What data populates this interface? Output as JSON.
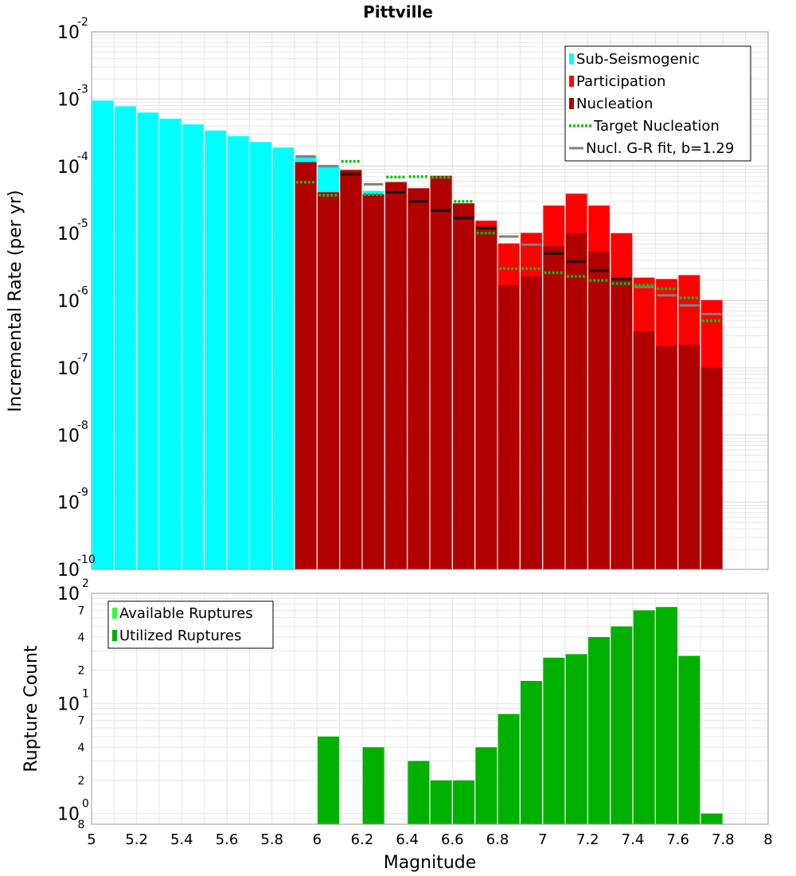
{
  "colors": {
    "sub_seismogenic": "#00ffff",
    "participation": "#ff0000",
    "nucleation": "#b00000",
    "target_nucleation": "#11bb11",
    "gr_fit": "#808080",
    "gr_fit_nucl": "#111111",
    "available_ruptures": "#33ff33",
    "utilized_ruptures": "#00b000",
    "grid": "#e6e6e6",
    "frame": "#999999"
  },
  "chart_data": [
    {
      "type": "bar",
      "title": "Pittville",
      "xlabel": "",
      "ylabel": "Incremental Rate (per yr)",
      "xlim": [
        5,
        8
      ],
      "ylim": [
        1e-10,
        0.01
      ],
      "yscale": "log",
      "bin_width": 0.1,
      "grid": true,
      "legend_position": "top-right",
      "ytick_labels": [
        {
          "base": "10",
          "exp": "-10"
        },
        {
          "base": "10",
          "exp": "-9"
        },
        {
          "base": "10",
          "exp": "-8"
        },
        {
          "base": "10",
          "exp": "-7"
        },
        {
          "base": "10",
          "exp": "-6"
        },
        {
          "base": "10",
          "exp": "-5"
        },
        {
          "base": "10",
          "exp": "-4"
        },
        {
          "base": "10",
          "exp": "-3"
        },
        {
          "base": "10",
          "exp": "-2"
        }
      ],
      "legend": [
        {
          "label": "Sub-Seismogenic",
          "kind": "bar",
          "color_key": "sub_seismogenic"
        },
        {
          "label": "Participation",
          "kind": "bar",
          "color_key": "participation"
        },
        {
          "label": "Nucleation",
          "kind": "bar",
          "color_key": "nucleation"
        },
        {
          "label": "Target Nucleation",
          "kind": "dotted",
          "color_key": "target_nucleation"
        },
        {
          "label": "Nucl. G-R fit, b=1.29",
          "kind": "line",
          "color_key": "gr_fit"
        }
      ],
      "sub_seismogenic": {
        "x": [
          5.05,
          5.15,
          5.25,
          5.35,
          5.45,
          5.55,
          5.65,
          5.75,
          5.85,
          5.95,
          6.05,
          6.15,
          6.25
        ],
        "values": [
          0.00095,
          0.00078,
          0.00063,
          0.00051,
          0.00042,
          0.00034,
          0.00028,
          0.00023,
          0.00019,
          0.000145,
          0.000105,
          8.2e-05,
          4.3e-05
        ]
      },
      "participation": {
        "x": [
          5.95,
          6.05,
          6.15,
          6.25,
          6.35,
          6.45,
          6.55,
          6.65,
          6.75,
          6.85,
          6.95,
          7.05,
          7.15,
          7.25,
          7.35,
          7.45,
          7.55,
          7.65,
          7.75
        ],
        "values": [
          0.000115,
          4.1e-05,
          8.8e-05,
          3.8e-05,
          5.8e-05,
          4.7e-05,
          7.2e-05,
          2.8e-05,
          1.55e-05,
          7.1e-06,
          1.02e-05,
          2.6e-05,
          3.9e-05,
          2.6e-05,
          1.01e-05,
          2.2e-06,
          2.1e-06,
          2.4e-06,
          1.02e-06
        ]
      },
      "nucleation": {
        "x": [
          5.95,
          6.05,
          6.15,
          6.25,
          6.35,
          6.45,
          6.55,
          6.65,
          6.75,
          6.85,
          6.95,
          7.05,
          7.15,
          7.25,
          7.35,
          7.45,
          7.55,
          7.65,
          7.75
        ],
        "values": [
          0.000115,
          4.1e-05,
          8.8e-05,
          3.8e-05,
          5.8e-05,
          4.7e-05,
          7.2e-05,
          2.8e-05,
          1.3e-05,
          1.7e-06,
          2.3e-06,
          6.5e-06,
          1e-05,
          5.4e-06,
          2.2e-06,
          3.5e-07,
          2.1e-07,
          2.2e-07,
          1e-07
        ]
      },
      "target_nucleation": {
        "x": [
          5.95,
          6.05,
          6.15,
          6.25,
          6.35,
          6.45,
          6.55,
          6.65,
          6.75,
          6.85,
          6.95,
          7.05,
          7.15,
          7.25,
          7.35,
          7.45,
          7.55,
          7.65,
          7.75
        ],
        "values": [
          5.8e-05,
          3.7e-05,
          0.000118,
          3.8e-05,
          6.9e-05,
          7e-05,
          6.8e-05,
          3e-05,
          1.01e-05,
          3e-06,
          3e-06,
          2.6e-06,
          2.3e-06,
          2e-06,
          1.8e-06,
          1.7e-06,
          1.5e-06,
          1.1e-06,
          5e-07
        ]
      },
      "gr_fit": {
        "x": [
          5.95,
          6.05,
          6.15,
          6.25,
          6.35,
          6.45,
          6.55,
          6.65,
          6.75,
          6.85,
          6.95,
          7.05,
          7.15,
          7.25,
          7.35,
          7.45,
          7.55,
          7.65,
          7.75
        ],
        "values": [
          0.00014,
          0.0001,
          7.6e-05,
          5.4e-05,
          4.1e-05,
          3e-05,
          2.2e-05,
          1.7e-05,
          1.2e-05,
          9e-06,
          6.8e-06,
          5e-06,
          3.8e-06,
          2.8e-06,
          2.1e-06,
          1.6e-06,
          1.2e-06,
          8.5e-07,
          6.3e-07
        ]
      }
    },
    {
      "type": "bar",
      "title": "",
      "xlabel": "Magnitude",
      "ylabel": "Rupture Count",
      "xlim": [
        5,
        8
      ],
      "ylim": [
        0.8,
        100
      ],
      "yscale": "log",
      "bin_width": 0.1,
      "grid": true,
      "legend_position": "top-left",
      "x_ticks": [
        "5",
        "5.2",
        "5.4",
        "5.6",
        "5.8",
        "6",
        "6.2",
        "6.4",
        "6.6",
        "6.8",
        "7",
        "7.2",
        "7.4",
        "7.6",
        "7.8",
        "8"
      ],
      "ytick_labels": [
        {
          "base": "10",
          "exp": "0"
        },
        {
          "base": "10",
          "exp": "1"
        },
        {
          "base": "10",
          "exp": "2"
        }
      ],
      "minor_tick_labels": [
        {
          "value": 0.8,
          "label": "8"
        },
        {
          "value": 2,
          "label": "2"
        },
        {
          "value": 4,
          "label": "4"
        },
        {
          "value": 7,
          "label": "7"
        },
        {
          "value": 20,
          "label": "2"
        },
        {
          "value": 40,
          "label": "4"
        },
        {
          "value": 70,
          "label": "7"
        }
      ],
      "legend": [
        {
          "label": "Available Ruptures",
          "kind": "bar",
          "color_key": "available_ruptures"
        },
        {
          "label": "Utilized Ruptures",
          "kind": "bar",
          "color_key": "utilized_ruptures"
        }
      ],
      "available_ruptures": {
        "x": [
          6.05,
          6.25,
          6.45,
          6.55,
          6.65,
          6.75,
          6.85,
          6.95,
          7.05,
          7.15,
          7.25,
          7.35,
          7.45,
          7.55,
          7.65,
          7.75
        ],
        "values": [
          5,
          4,
          3,
          2,
          2,
          4,
          8,
          16,
          26,
          28,
          40,
          50,
          70,
          75,
          27,
          1
        ]
      },
      "utilized_ruptures": {
        "x": [
          6.05,
          6.25,
          6.45,
          6.55,
          6.65,
          6.75,
          6.85,
          6.95,
          7.05,
          7.15,
          7.25,
          7.35,
          7.45,
          7.55,
          7.65,
          7.75
        ],
        "values": [
          5,
          4,
          3,
          2,
          2,
          4,
          8,
          16,
          26,
          28,
          40,
          50,
          70,
          75,
          27,
          1
        ]
      }
    }
  ]
}
